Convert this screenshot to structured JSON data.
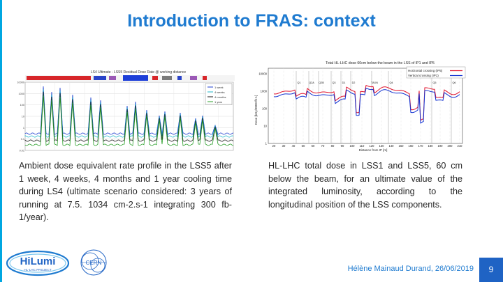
{
  "title": "Introduction to FRAS: context",
  "left_figure": {
    "title": "LS4 Ultimate - LSS5 Residual Dose Rate @ working distance",
    "y_ticks": [
      "10000",
      "1000",
      "100",
      "10",
      "1",
      "0.1",
      "0.01"
    ],
    "legend": [
      "1 week",
      "4 weeks",
      "4 months",
      "1 year"
    ],
    "colors": {
      "1 week": "#1f3fd0",
      "4 weeks": "#20b7c8",
      "4 months": "#1a1a1a",
      "1 year": "#2ca02c"
    }
  },
  "right_figure": {
    "title": "Total HL-LHC dose 60cm below the beam in the LSS of IP1 and IP5",
    "ylabel": "Dose [kGy/3000 fb-1]",
    "xlabel": "Distance from IP [m]",
    "legend": [
      "Horizontal crossing (IP5)",
      "Vertical crossing (IP1)"
    ],
    "colors": {
      "Horizontal crossing (IP5)": "#e0102a",
      "Vertical crossing (IP1)": "#1030d0"
    },
    "y_ticks": [
      "10000",
      "1000",
      "100",
      "10",
      "1"
    ],
    "x_ticks": [
      "20",
      "30",
      "40",
      "50",
      "60",
      "70",
      "80",
      "90",
      "100",
      "110",
      "120",
      "130",
      "140",
      "150",
      "160",
      "170",
      "180",
      "190",
      "200",
      "210"
    ],
    "component_labels": [
      "Q1",
      "Q2A",
      "Q2B",
      "Q3",
      "D1",
      "D2",
      "TAXN",
      "Q4",
      "Q5",
      "Q6"
    ]
  },
  "captions": {
    "left": "Ambient dose equivalent rate profile in the LSS5 after 1 week, 4 weeks, 4 months and 1 year cooling time during LS4 (ultimate scenario considered: 3 years of running at 7.5. 1034 cm-2.s-1 integrating 300 fb-1/year).",
    "right": "HL-LHC total dose in LSS1 and LSS5, 60 cm below the beam, for an ultimate value of the integrated luminosity, according to the longitudinal position of the LSS components."
  },
  "footer": {
    "author_date": "Hélène Mainaud Durand, 26/06/2019",
    "page": "9"
  },
  "logos": {
    "hilumi": "HiLumi",
    "hilumi_sub": "HL-LHC PROJECT",
    "cern": "CERN"
  }
}
